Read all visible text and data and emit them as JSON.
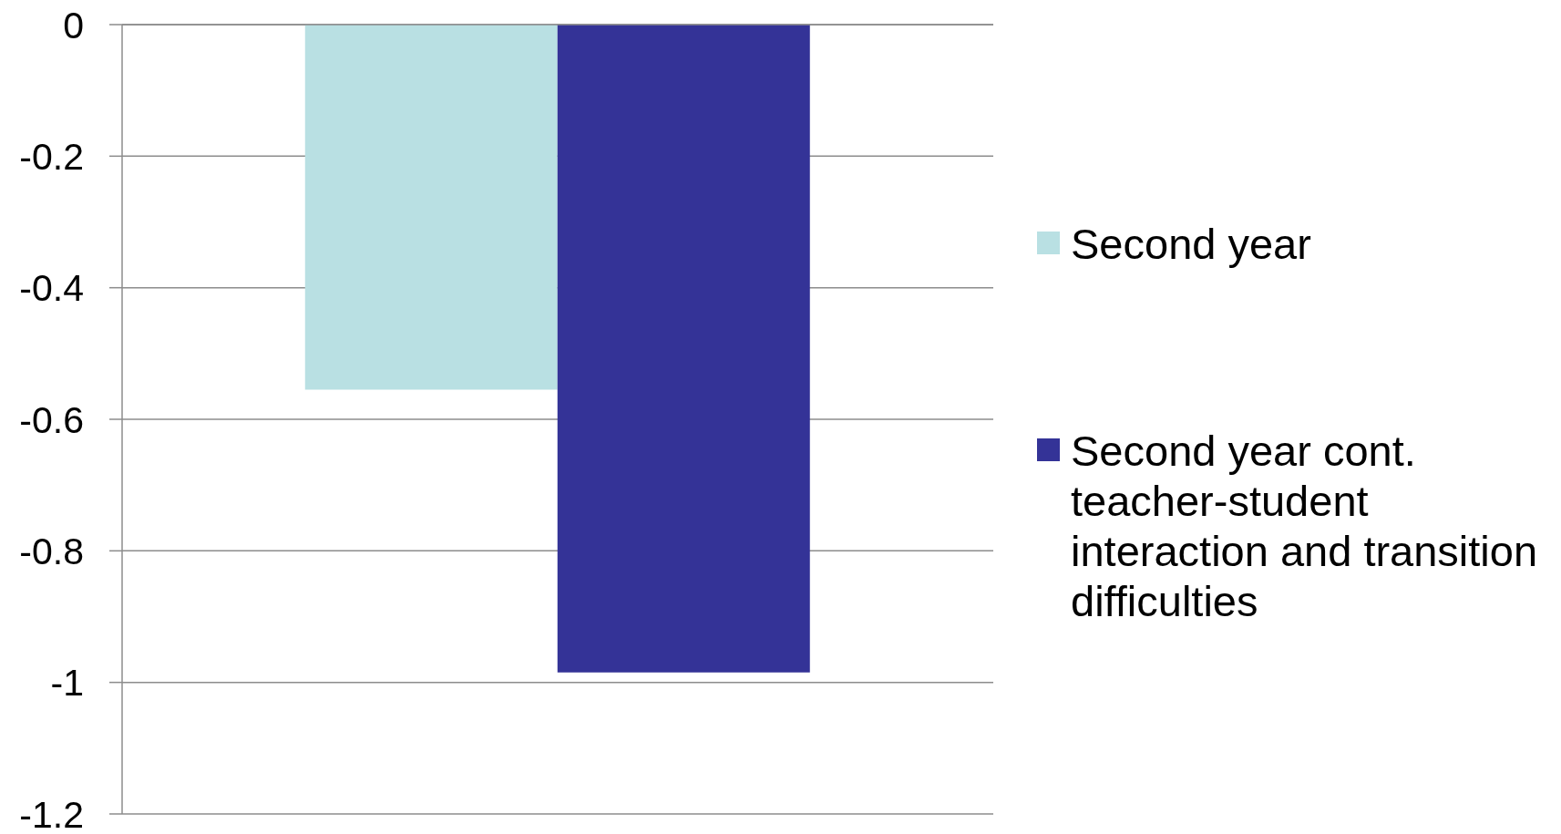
{
  "chart_data": {
    "type": "bar",
    "categories": [
      null
    ],
    "series": [
      {
        "name": "Second year",
        "color": "#b9e0e3",
        "values": [
          -0.555
        ]
      },
      {
        "name": "Second year cont. teacher-student interaction and transition difficulties",
        "color": "#343397",
        "values": [
          -0.985
        ]
      }
    ],
    "ylim": [
      -1.2,
      0
    ],
    "yticks": [
      -1.2,
      -1,
      -0.8,
      -0.6,
      -0.4,
      -0.2,
      0
    ],
    "grid": "y",
    "legend": "right"
  }
}
